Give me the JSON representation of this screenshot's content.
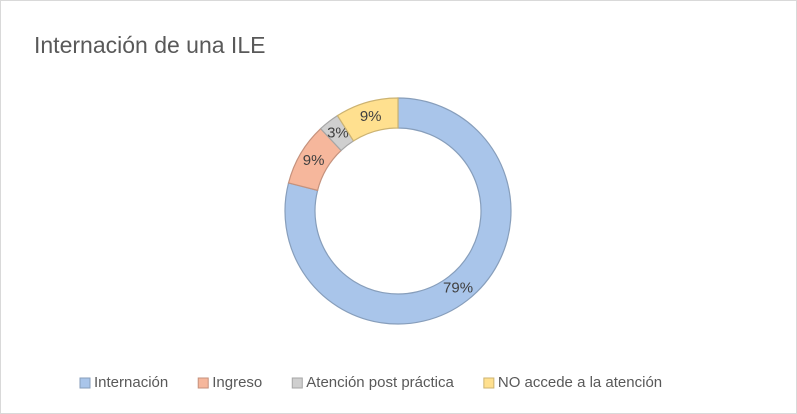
{
  "chart_data": {
    "type": "doughnut",
    "title": "Internación de una ILE",
    "categories": [
      "Internación",
      "Ingreso",
      "Atención post práctica",
      "NO accede a la atención"
    ],
    "values": [
      79,
      9,
      3,
      9
    ],
    "value_labels": [
      "79%",
      "9%",
      "3%",
      "9%"
    ],
    "colors": [
      "#a9c5ea",
      "#f6b79c",
      "#cfcfcf",
      "#ffe08f"
    ],
    "legend": "bottom"
  }
}
